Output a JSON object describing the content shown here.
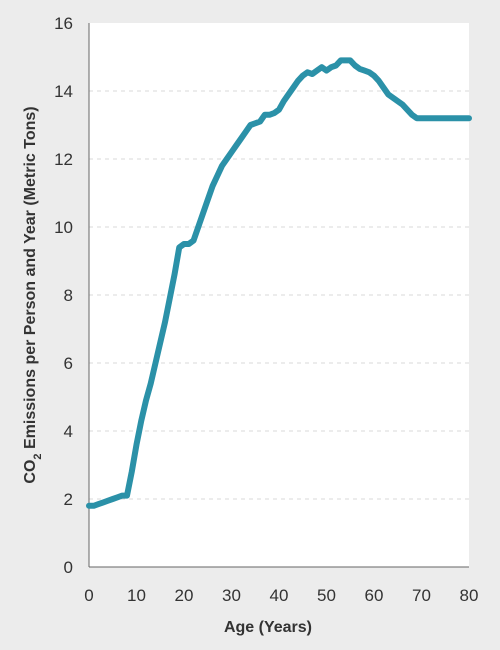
{
  "chart_data": {
    "type": "line",
    "title": "",
    "xlabel": "Age (Years)",
    "ylabel_parts": {
      "prefix": "CO",
      "subscript": "2",
      "suffix": " Emissions per Person and Year (Metric Tons)"
    },
    "xlim": [
      0,
      80
    ],
    "ylim": [
      0,
      16
    ],
    "x_ticks": [
      "0",
      "10",
      "20",
      "30",
      "40",
      "50",
      "60",
      "70",
      "80"
    ],
    "y_ticks": [
      "0",
      "2",
      "4",
      "6",
      "8",
      "10",
      "12",
      "14",
      "16"
    ],
    "grid": "horizontal dashed",
    "series": [
      {
        "color": "#2b91a8",
        "x": [
          0,
          1,
          2,
          3,
          4,
          5,
          6,
          7,
          8,
          9,
          10,
          11,
          12,
          13,
          14,
          15,
          16,
          17,
          18,
          19,
          20,
          21,
          22,
          23,
          24,
          25,
          26,
          27,
          28,
          29,
          30,
          31,
          32,
          33,
          34,
          35,
          36,
          37,
          38,
          39,
          40,
          41,
          42,
          43,
          44,
          45,
          46,
          47,
          48,
          49,
          50,
          51,
          52,
          53,
          54,
          55,
          56,
          57,
          58,
          59,
          60,
          61,
          62,
          63,
          64,
          65,
          66,
          67,
          68,
          69,
          70,
          71,
          72,
          73,
          74,
          75,
          76,
          77,
          78,
          79,
          80
        ],
        "y": [
          1.8,
          1.8,
          1.85,
          1.9,
          1.95,
          2.0,
          2.05,
          2.1,
          2.1,
          2.8,
          3.6,
          4.3,
          4.9,
          5.4,
          6.0,
          6.6,
          7.2,
          7.9,
          8.6,
          9.4,
          9.5,
          9.5,
          9.6,
          10.0,
          10.4,
          10.8,
          11.2,
          11.5,
          11.8,
          12.0,
          12.2,
          12.4,
          12.6,
          12.8,
          13.0,
          13.05,
          13.1,
          13.3,
          13.3,
          13.35,
          13.45,
          13.7,
          13.9,
          14.1,
          14.3,
          14.45,
          14.55,
          14.5,
          14.6,
          14.7,
          14.6,
          14.7,
          14.75,
          14.9,
          14.9,
          14.9,
          14.75,
          14.65,
          14.6,
          14.55,
          14.45,
          14.3,
          14.1,
          13.9,
          13.8,
          13.7,
          13.6,
          13.45,
          13.3,
          13.2,
          13.2,
          13.2,
          13.2,
          13.2,
          13.2,
          13.2,
          13.2,
          13.2,
          13.2,
          13.2,
          13.2
        ]
      }
    ]
  }
}
